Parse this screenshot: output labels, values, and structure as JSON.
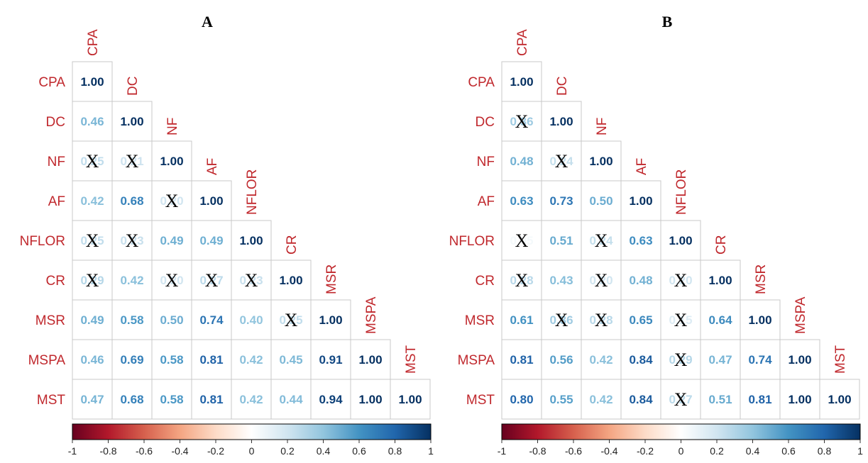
{
  "chart_data": [
    {
      "type": "heatmap",
      "title": "A",
      "variables": [
        "CPA",
        "DC",
        "NF",
        "AF",
        "NFLOR",
        "CR",
        "MSR",
        "MSPA",
        "MST"
      ],
      "matrix_lower": [
        [
          1.0
        ],
        [
          0.46,
          1.0
        ],
        [
          0.25,
          0.21,
          1.0
        ],
        [
          0.42,
          0.68,
          0.2,
          1.0
        ],
        [
          0.25,
          0.23,
          0.49,
          0.49,
          1.0
        ],
        [
          0.29,
          0.42,
          0.2,
          0.27,
          0.23,
          1.0
        ],
        [
          0.49,
          0.58,
          0.5,
          0.74,
          0.4,
          0.25,
          1.0
        ],
        [
          0.46,
          0.69,
          0.58,
          0.81,
          0.42,
          0.45,
          0.91,
          1.0
        ],
        [
          0.47,
          0.68,
          0.58,
          0.81,
          0.42,
          0.44,
          0.94,
          1.0,
          1.0
        ]
      ],
      "labels_lower": [
        [
          "1.00"
        ],
        [
          "0.46",
          "1.00"
        ],
        [
          "0.25",
          "0.21",
          "1.00"
        ],
        [
          "0.42",
          "0.68",
          "0.20",
          "1.00"
        ],
        [
          "0.25",
          "0.23",
          "0.49",
          "0.49",
          "1.00"
        ],
        [
          "0.29",
          "0.42",
          "0.20",
          "0.27",
          "0.23",
          "1.00"
        ],
        [
          "0.49",
          "0.58",
          "0.50",
          "0.74",
          "0.40",
          "0.25",
          "1.00"
        ],
        [
          "0.46",
          "0.69",
          "0.58",
          "0.81",
          "0.42",
          "0.45",
          "0.91",
          "1.00"
        ],
        [
          "0.47",
          "0.68",
          "0.58",
          "0.81",
          "0.42",
          "0.44",
          "0.94",
          "1.00",
          "1.00"
        ]
      ],
      "nonsignificant": [
        [
          2,
          0
        ],
        [
          2,
          1
        ],
        [
          3,
          2
        ],
        [
          4,
          0
        ],
        [
          4,
          1
        ],
        [
          5,
          0
        ],
        [
          5,
          2
        ],
        [
          5,
          3
        ],
        [
          5,
          4
        ],
        [
          6,
          5
        ]
      ],
      "nonsignificant_marker": "X",
      "colorbar": {
        "min": -1,
        "max": 1,
        "ticks": [
          "-1",
          "-0.8",
          "-0.6",
          "-0.4",
          "-0.2",
          "0",
          "0.2",
          "0.4",
          "0.6",
          "0.8",
          "1"
        ]
      },
      "colors": {
        "negative": "#67001f",
        "neutral": "#ffffff",
        "positive": "#053061",
        "label": "#c0282d"
      }
    },
    {
      "type": "heatmap",
      "title": "B",
      "variables": [
        "CPA",
        "DC",
        "NF",
        "AF",
        "NFLOR",
        "CR",
        "MSR",
        "MSPA",
        "MST"
      ],
      "matrix_lower": [
        [
          1.0
        ],
        [
          0.36,
          1.0
        ],
        [
          0.48,
          0.24,
          1.0
        ],
        [
          0.63,
          0.73,
          0.5,
          1.0
        ],
        [
          0.05,
          0.51,
          0.24,
          0.63,
          1.0
        ],
        [
          0.28,
          0.43,
          0.2,
          0.48,
          0.2,
          1.0
        ],
        [
          0.61,
          0.36,
          0.28,
          0.65,
          0.15,
          0.64,
          1.0
        ],
        [
          0.81,
          0.56,
          0.42,
          0.84,
          0.29,
          0.47,
          0.74,
          1.0
        ],
        [
          0.8,
          0.55,
          0.42,
          0.84,
          0.27,
          0.51,
          0.81,
          1.0,
          1.0
        ]
      ],
      "labels_lower": [
        [
          "1.00"
        ],
        [
          "0.36",
          "1.00"
        ],
        [
          "0.48",
          "0.24",
          "1.00"
        ],
        [
          "0.63",
          "0.73",
          "0.50",
          "1.00"
        ],
        [
          "0.05",
          "0.51",
          "0.24",
          "0.63",
          "1.00"
        ],
        [
          "0.28",
          "0.43",
          "0.20",
          "0.48",
          "0.20",
          "1.00"
        ],
        [
          "0.61",
          "0.36",
          "0.28",
          "0.65",
          "0.15",
          "0.64",
          "1.00"
        ],
        [
          "0.81",
          "0.56",
          "0.42",
          "0.84",
          "0.29",
          "0.47",
          "0.74",
          "1.00"
        ],
        [
          "0.80",
          "0.55",
          "0.42",
          "0.84",
          "0.27",
          "0.51",
          "0.81",
          "1.00",
          "1.00"
        ]
      ],
      "nonsignificant": [
        [
          1,
          0
        ],
        [
          2,
          1
        ],
        [
          4,
          0
        ],
        [
          4,
          2
        ],
        [
          5,
          0
        ],
        [
          5,
          2
        ],
        [
          5,
          4
        ],
        [
          6,
          1
        ],
        [
          6,
          2
        ],
        [
          6,
          4
        ],
        [
          7,
          4
        ],
        [
          8,
          4
        ]
      ],
      "nonsignificant_marker": "X",
      "colorbar": {
        "min": -1,
        "max": 1,
        "ticks": [
          "-1",
          "-0.8",
          "-0.6",
          "-0.4",
          "-0.2",
          "0",
          "0.2",
          "0.4",
          "0.6",
          "0.8",
          "1"
        ]
      },
      "colors": {
        "negative": "#67001f",
        "neutral": "#ffffff",
        "positive": "#053061",
        "label": "#c0282d"
      }
    }
  ]
}
